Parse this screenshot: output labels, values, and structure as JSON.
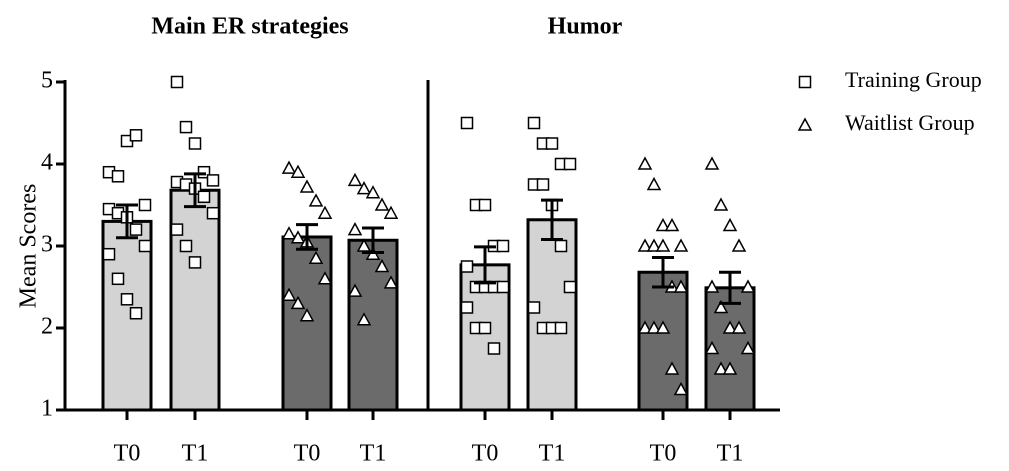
{
  "chart_data": {
    "type": "bar",
    "ylabel": "Mean Scores",
    "ylim": [
      1,
      5
    ],
    "yticks": [
      1,
      2,
      3,
      4,
      5
    ],
    "categories": [
      "T0",
      "T1"
    ],
    "legend": "outside-upper-right",
    "series": [
      {
        "name": "Training Group",
        "color": "#d3d3d3",
        "marker": "square"
      },
      {
        "name": "Waitlist Group",
        "color": "#6b6b6b",
        "marker": "triangle"
      }
    ],
    "panels": [
      {
        "title": "Main ER strategies",
        "groups": [
          {
            "values": [
              3.3,
              3.68
            ],
            "errors": [
              0.2,
              0.2
            ],
            "points": [
              [
                3.9,
                3.85,
                4.28,
                4.35,
                3.5,
                3.45,
                3.4,
                3.35,
                3.2,
                3.0,
                2.9,
                2.6,
                2.35,
                2.18
              ],
              [
                5.0,
                4.45,
                4.25,
                3.9,
                3.8,
                3.78,
                3.75,
                3.7,
                3.6,
                3.4,
                3.2,
                3.0,
                2.8
              ]
            ]
          },
          {
            "values": [
              3.11,
              3.07
            ],
            "errors": [
              0.15,
              0.15
            ],
            "points": [
              [
                3.95,
                3.9,
                3.72,
                3.55,
                3.4,
                3.15,
                3.1,
                3.05,
                2.85,
                2.6,
                2.4,
                2.3,
                2.15
              ],
              [
                3.8,
                3.7,
                3.65,
                3.5,
                3.4,
                3.2,
                3.0,
                2.9,
                2.75,
                2.55,
                2.45,
                2.1
              ]
            ]
          }
        ]
      },
      {
        "title": "Humor",
        "groups": [
          {
            "values": [
              2.77,
              3.32
            ],
            "errors": [
              0.22,
              0.24
            ],
            "points": [
              [
                4.5,
                3.5,
                3.5,
                3.0,
                3.0,
                2.75,
                2.5,
                2.5,
                2.5,
                2.5,
                2.25,
                2.0,
                2.0,
                1.75
              ],
              [
                4.5,
                4.25,
                4.25,
                4.0,
                4.0,
                3.75,
                3.75,
                3.5,
                3.0,
                2.5,
                2.25,
                2.0,
                2.0,
                2.0
              ]
            ]
          },
          {
            "values": [
              2.68,
              2.49
            ],
            "errors": [
              0.18,
              0.19
            ],
            "points": [
              [
                4.0,
                3.75,
                3.25,
                3.25,
                3.0,
                3.0,
                3.0,
                3.0,
                2.5,
                2.5,
                2.0,
                2.0,
                2.0,
                1.5,
                1.25
              ],
              [
                4.0,
                3.5,
                3.25,
                3.0,
                2.5,
                2.5,
                2.25,
                2.0,
                2.0,
                1.75,
                1.75,
                1.5,
                1.5
              ]
            ]
          }
        ]
      }
    ]
  }
}
